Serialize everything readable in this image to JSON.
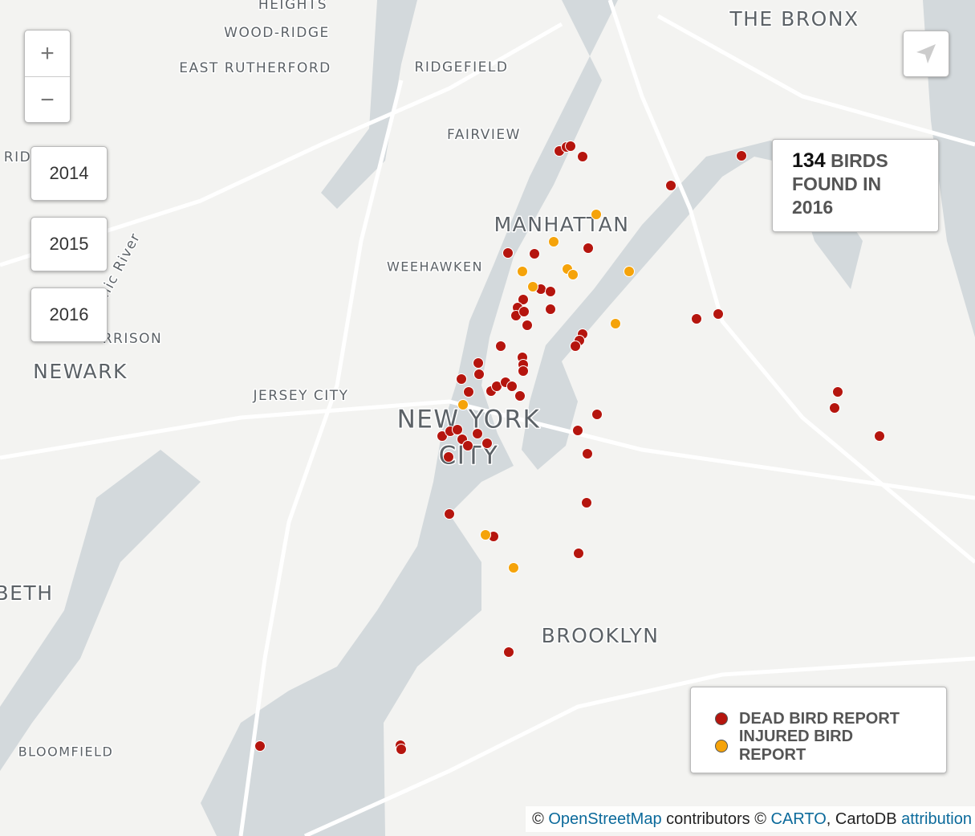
{
  "map": {
    "zoom": {
      "in": "+",
      "out": "−"
    },
    "years": [
      "2014",
      "2015",
      "2016"
    ],
    "labels": [
      "HEIGHTS",
      "WOOD-RIDGE",
      "EAST RUTHERFORD",
      "RIDGEFIELD",
      "FAIRVIEW",
      "THE BRONX",
      "MANHATTAN",
      "WEEHAWKEN",
      "RID",
      "RRISON",
      "NEWARK",
      "JERSEY CITY",
      "NEW YORK",
      "CITY",
      "BROOKLYN",
      "BETH",
      "BLOOMFIELD",
      "nic River"
    ],
    "info": {
      "count": "134",
      "line1": "BIRDS",
      "line2": "FOUND IN",
      "line3": "2016"
    },
    "legend": [
      {
        "name": "DEAD BIRD REPORT",
        "color": "#b5150e"
      },
      {
        "name": "INJURED BIRD REPORT",
        "color": "#f5a30a"
      }
    ],
    "attribution": {
      "copy1": "©",
      "osm": "OpenStreetMap",
      "mid": "contributors ©",
      "carto": "CARTO",
      "cartodb": ", CartoDB",
      "link": "attribution"
    }
  }
}
